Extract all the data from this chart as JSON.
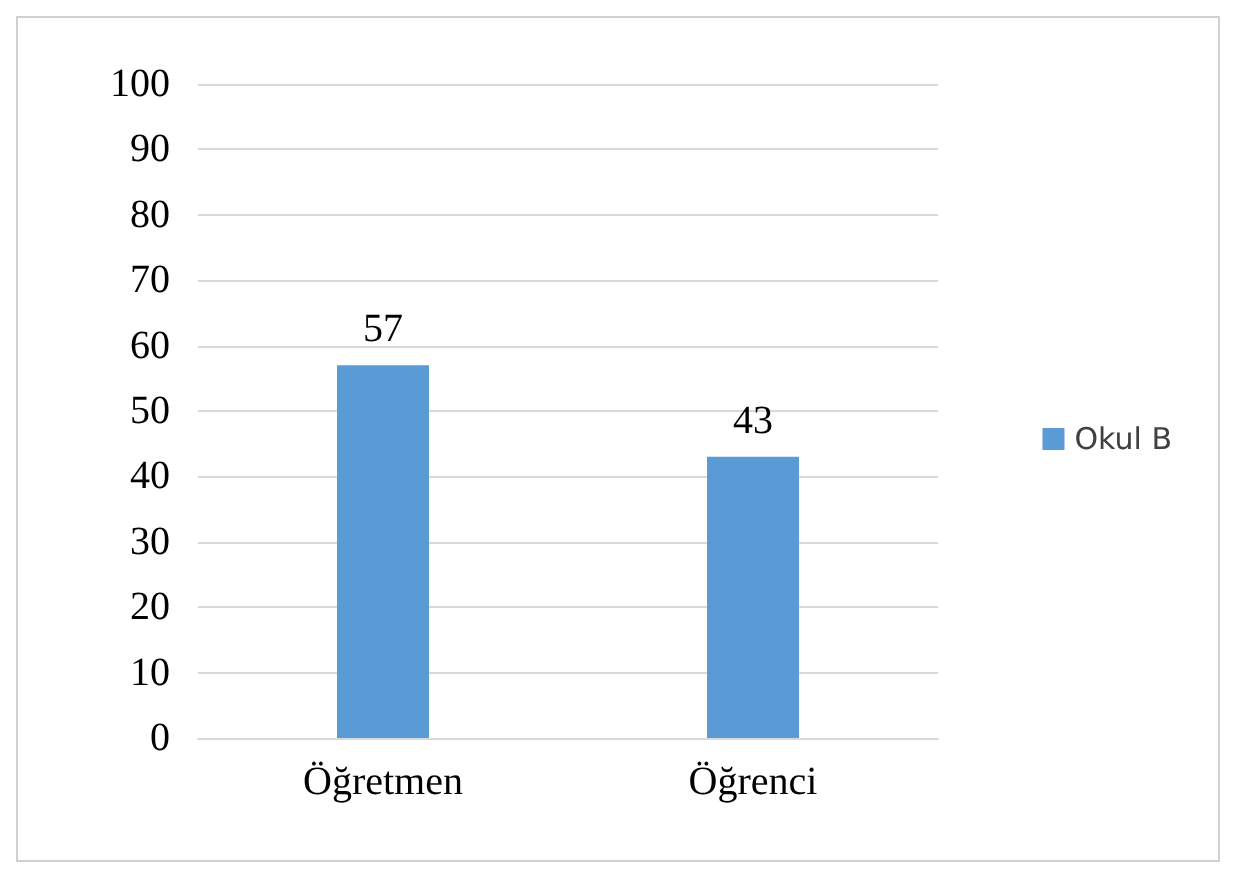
{
  "chart_data": {
    "type": "bar",
    "categories": [
      "Öğretmen",
      "Öğrenci"
    ],
    "series": [
      {
        "name": "Okul B",
        "color": "#5b9bd5",
        "values": [
          57,
          43
        ]
      }
    ],
    "ylim": [
      0,
      100
    ],
    "yticks": [
      0,
      10,
      20,
      30,
      40,
      50,
      60,
      70,
      80,
      90,
      100
    ],
    "grid": "y",
    "legend": "right",
    "data_labels": true
  }
}
